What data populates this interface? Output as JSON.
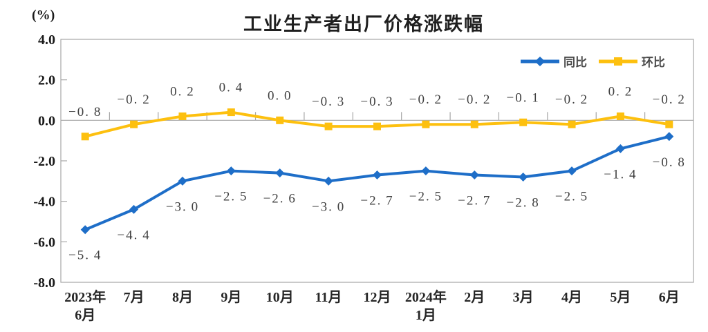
{
  "chart_data": {
    "type": "line",
    "title": "工业生产者出厂价格涨跌幅",
    "unit": "(%)",
    "categories": [
      [
        "2023年",
        "6月"
      ],
      "7月",
      "8月",
      "9月",
      "10月",
      "11月",
      "12月",
      [
        "2024年",
        "1月"
      ],
      "2月",
      "3月",
      "4月",
      "5月",
      "6月"
    ],
    "series": [
      {
        "id": "yoy",
        "name": "同比",
        "color": "#1E6EC8",
        "marker": "diamond",
        "label_position": "below",
        "values": [
          -5.4,
          -4.4,
          -3.0,
          -2.5,
          -2.6,
          -3.0,
          -2.7,
          -2.5,
          -2.7,
          -2.8,
          -2.5,
          -1.4,
          -0.8
        ]
      },
      {
        "id": "mom",
        "name": "环比",
        "color": "#FDC00F",
        "marker": "square",
        "label_position": "above",
        "values": [
          -0.8,
          -0.2,
          0.2,
          0.4,
          0.0,
          -0.3,
          -0.3,
          -0.2,
          -0.2,
          -0.1,
          -0.2,
          0.2,
          -0.2
        ]
      }
    ],
    "ylim": [
      -8,
      4
    ],
    "y_ticks": [
      4.0,
      2.0,
      0.0,
      -2.0,
      -4.0,
      -6.0,
      -8.0
    ],
    "legend_position": "top-right",
    "grid": false,
    "axis_color": "#A6A6A6",
    "label_color": "#3F3F3F",
    "axis_text_color": "#262626"
  }
}
